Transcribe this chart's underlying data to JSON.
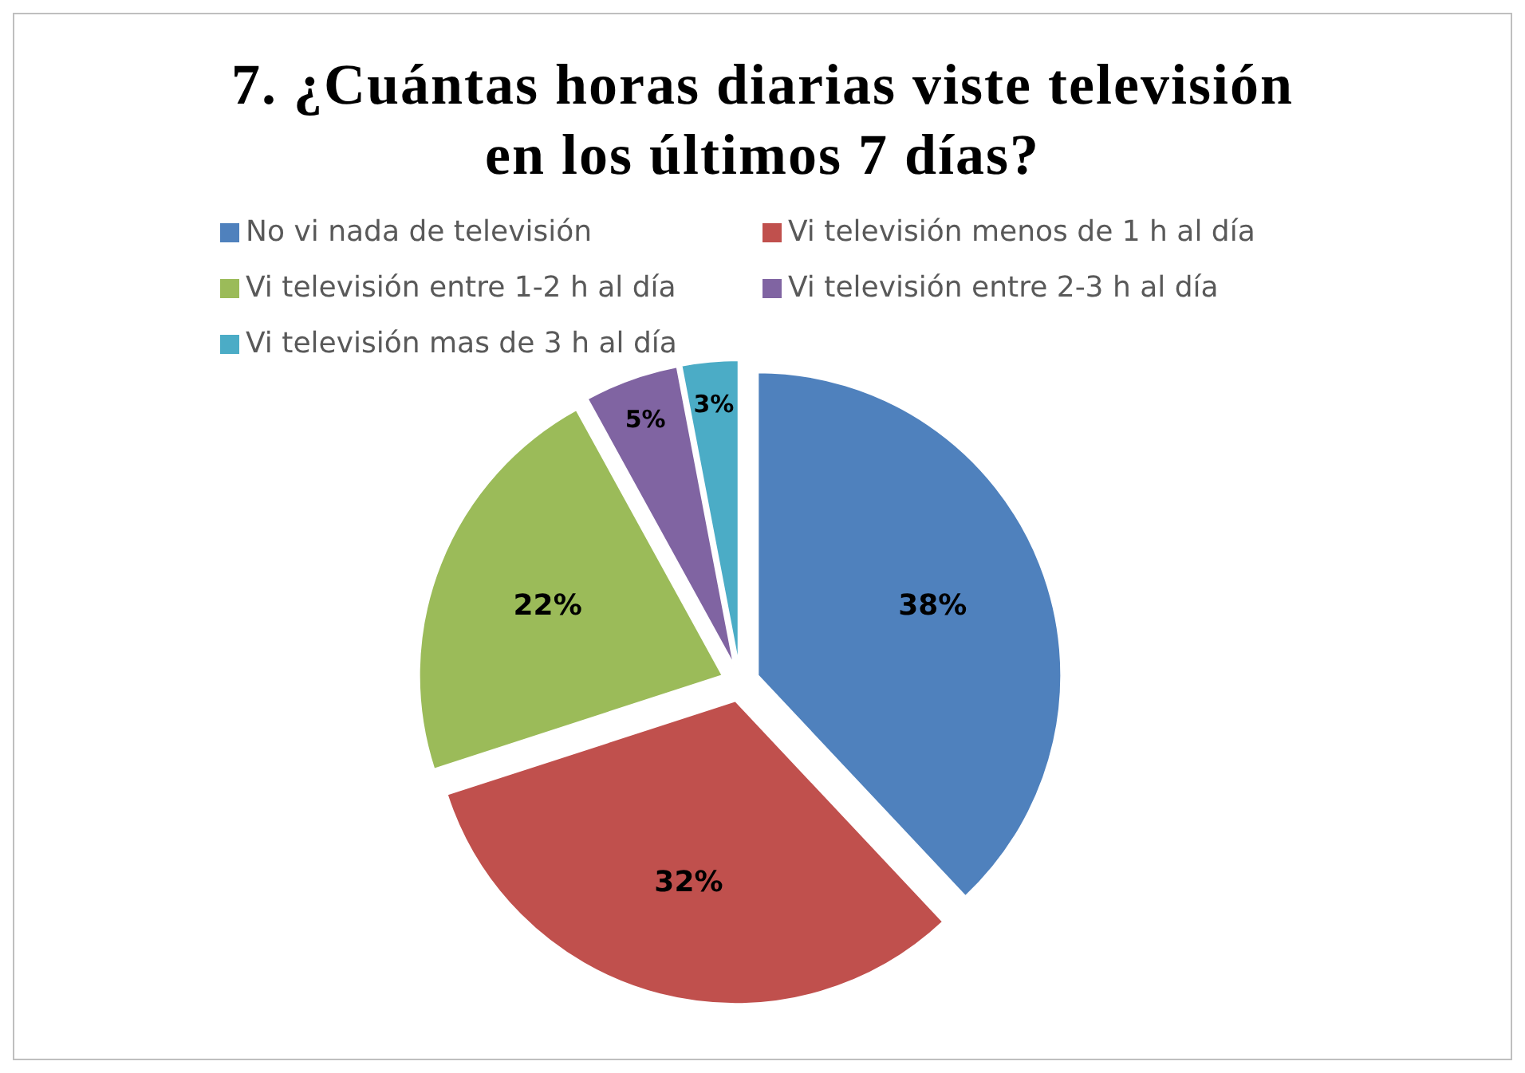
{
  "chart_data": {
    "type": "pie",
    "title": "7. ¿Cuántas horas diarias viste televisión en los últimos 7 días?",
    "categories": [
      "No vi nada de televisión",
      "Vi televisión menos de 1 h al día",
      "Vi televisión entre 1-2 h al día",
      "Vi televisión entre 2-3 h al día",
      "Vi televisión mas de 3 h al día"
    ],
    "values": [
      38,
      32,
      22,
      5,
      3
    ],
    "value_labels": [
      "38%",
      "32%",
      "22%",
      "5%",
      "3%"
    ],
    "colors": [
      "#4f81bd",
      "#c0504d",
      "#9bbb59",
      "#8064a2",
      "#4bacc6"
    ],
    "legend": "top"
  }
}
